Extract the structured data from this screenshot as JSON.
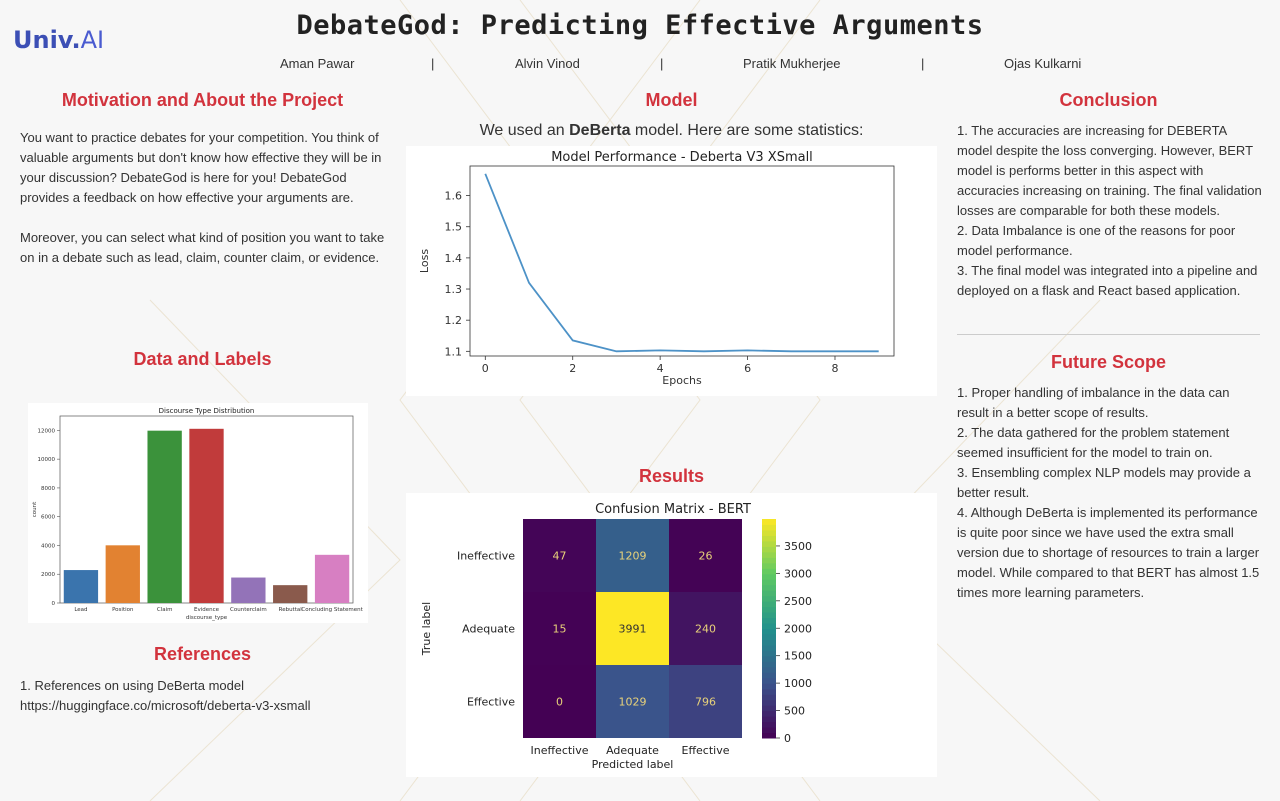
{
  "logo": {
    "brand": "Univ.",
    "suffix": "AI"
  },
  "title": "DebateGod: Predicting Effective Arguments",
  "authors": [
    "Aman Pawar",
    "Alvin Vinod",
    "Pratik Mukherjee",
    "Ojas Kulkarni"
  ],
  "separator": "|",
  "motivation": {
    "heading": "Motivation and About the Project",
    "p1": "You want to practice debates for your competition. You think of valuable arguments but don't know how effective they will be in your discussion? DebateGod is here for you! DebateGod provides a feedback on how effective your arguments are.",
    "p2": "Moreover, you can select what kind of position you want to take on in a debate such as lead, claim, counter claim, or evidence."
  },
  "data_labels": {
    "heading": "Data and Labels"
  },
  "references": {
    "heading": "References",
    "line1": "1. References on using DeBerta model",
    "line2": "https://huggingface.co/microsoft/deberta-v3-xsmall"
  },
  "model": {
    "heading": "Model",
    "intro_pre": "We used an ",
    "intro_bold": "DeBerta",
    "intro_post": " model. Here are some statistics:"
  },
  "results": {
    "heading": "Results"
  },
  "conclusion": {
    "heading": "Conclusion",
    "text": "1. The accuracies are increasing for DEBERTA model despite the loss converging. However, BERT model is performs better in this aspect with accuracies increasing on training. The final validation losses are comparable for both these models.\n2. Data Imbalance is one of the reasons for poor model performance.\n3. The final model was integrated into a pipeline and deployed on a flask and React based application."
  },
  "future": {
    "heading": "Future Scope",
    "text": "1. Proper handling of imbalance in the data can result in a better scope of results.\n2. The data gathered for the problem statement seemed insufficient for the model to train on.\n3. Ensembling complex NLP models may provide a better result.\n4. Although DeBerta is implemented its performance is quite poor since we have used the extra small version due to shortage of resources to train a larger model. While compared to that BERT has almost 1.5 times more learning parameters."
  },
  "colors": {
    "heading": "#d2333d",
    "logo": "#3c4fb5"
  },
  "chart_data": [
    {
      "type": "bar",
      "title": "Discourse Type Distribution",
      "xlabel": "discourse_type",
      "ylabel": "count",
      "categories": [
        "Lead",
        "Position",
        "Claim",
        "Evidence",
        "Counterclaim",
        "Rebuttal",
        "Concluding Statement"
      ],
      "values": [
        2290,
        4010,
        11980,
        12110,
        1770,
        1240,
        3350
      ],
      "colors": [
        "#3a74ad",
        "#e28231",
        "#3b923b",
        "#c13b3b",
        "#9373b8",
        "#8a5a4c",
        "#d77fc2"
      ],
      "ylim": [
        0,
        13000
      ],
      "yticks": [
        0,
        2000,
        4000,
        6000,
        8000,
        10000,
        12000
      ]
    },
    {
      "type": "line",
      "title": "Model Performance - Deberta V3 XSmall",
      "xlabel": "Epochs",
      "ylabel": "Loss",
      "x": [
        0,
        1,
        2,
        3,
        4,
        5,
        6,
        7,
        8,
        9
      ],
      "y": [
        1.67,
        1.32,
        1.135,
        1.1,
        1.103,
        1.1,
        1.103,
        1.1,
        1.1,
        1.1
      ],
      "xticks": [
        0,
        2,
        4,
        6,
        8
      ],
      "yticks": [
        1.1,
        1.2,
        1.3,
        1.4,
        1.5,
        1.6
      ],
      "xlim": [
        -0.35,
        9.35
      ],
      "ylim": [
        1.085,
        1.695
      ],
      "color": "#4d92c7"
    },
    {
      "type": "heatmap",
      "title": "Confusion Matrix - BERT",
      "xlabel": "Predicted label",
      "ylabel": "True label",
      "rows": [
        "Ineffective",
        "Adequate",
        "Effective"
      ],
      "cols": [
        "Ineffective",
        "Adequate",
        "Effective"
      ],
      "values": [
        [
          47,
          1209,
          26
        ],
        [
          15,
          3991,
          240
        ],
        [
          0,
          1029,
          796
        ]
      ],
      "colorbar_ticks": [
        0,
        500,
        1000,
        1500,
        2000,
        2500,
        3000,
        3500
      ],
      "vmax": 3991
    }
  ]
}
